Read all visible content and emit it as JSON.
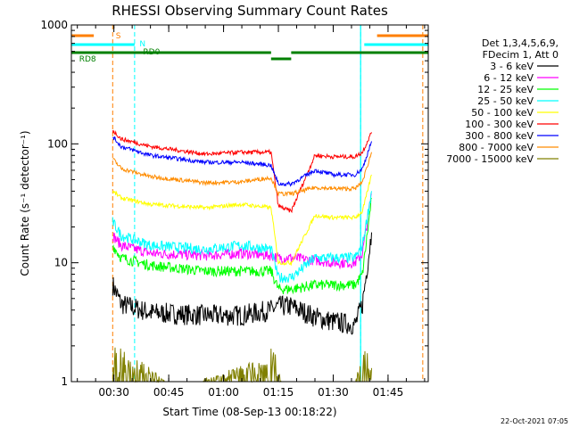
{
  "chart_data": {
    "type": "line",
    "title": "RHESSI Observing Summary Count Rates",
    "xlabel": "Start Time (08-Sep-13 00:18:22)",
    "ylabel": "Count Rate (s⁻¹ detector⁻¹)",
    "yscale": "log",
    "ylim": [
      1,
      1000
    ],
    "xlim": [
      "00:18:22",
      "01:56:00"
    ],
    "x_ticks": [
      "00:30",
      "00:45",
      "01:00",
      "01:15",
      "01:30",
      "01:45"
    ],
    "y_ticks": [
      "1",
      "10",
      "100",
      "1000"
    ],
    "grid": false,
    "legend_position": "right",
    "legend_header": [
      "Det 1,3,4,5,6,9,",
      "FDecim 1, Att 0"
    ],
    "timestamp": "22-Oct-2021 07:05",
    "markers": [
      {
        "label": "S",
        "color": "#ff7f00",
        "style": "dashed",
        "times": [
          "00:29:40",
          "01:54:30"
        ]
      },
      {
        "label": "N",
        "color": "#00ffff",
        "style": "dashed",
        "times": [
          "00:35:40",
          "01:37:30"
        ]
      }
    ],
    "data_gaps": [
      [
        "00:18:22",
        "00:29:40"
      ],
      [
        "01:40:30",
        "01:56:00"
      ]
    ],
    "attenuator_step": [
      "01:13:00",
      "01:18:30"
    ],
    "series": [
      {
        "name": "3 - 6 keV",
        "color": "#000000",
        "points": [
          [
            "00:29:40",
            6.5
          ],
          [
            "00:32:00",
            4.5
          ],
          [
            "00:40:00",
            3.8
          ],
          [
            "00:55:00",
            3.6
          ],
          [
            "01:05:00",
            3.6
          ],
          [
            "01:13:00",
            4
          ],
          [
            "01:15:00",
            4.3
          ],
          [
            "01:18:30",
            4.3
          ],
          [
            "01:25:00",
            3.5
          ],
          [
            "01:30:00",
            3.2
          ],
          [
            "01:36:00",
            3
          ],
          [
            "01:38:00",
            4.5
          ],
          [
            "01:40:30",
            18
          ]
        ]
      },
      {
        "name": "6 - 12 keV",
        "color": "#ff00ff",
        "points": [
          [
            "00:29:40",
            17
          ],
          [
            "00:32:00",
            14
          ],
          [
            "00:40:00",
            12
          ],
          [
            "00:55:00",
            11.5
          ],
          [
            "01:05:00",
            12
          ],
          [
            "01:13:00",
            11.5
          ],
          [
            "01:15:00",
            11
          ],
          [
            "01:18:30",
            11
          ],
          [
            "01:25:00",
            10.5
          ],
          [
            "01:30:00",
            10
          ],
          [
            "01:36:00",
            10
          ],
          [
            "01:38:00",
            12
          ],
          [
            "01:40:30",
            38
          ]
        ]
      },
      {
        "name": "12 - 25 keV",
        "color": "#00ff00",
        "points": [
          [
            "00:29:40",
            14
          ],
          [
            "00:32:00",
            11
          ],
          [
            "00:40:00",
            9.5
          ],
          [
            "00:55:00",
            8.5
          ],
          [
            "01:05:00",
            8.5
          ],
          [
            "01:13:00",
            8.5
          ],
          [
            "01:15:00",
            6
          ],
          [
            "01:18:30",
            6
          ],
          [
            "01:25:00",
            6.5
          ],
          [
            "01:30:00",
            6.5
          ],
          [
            "01:36:00",
            6.5
          ],
          [
            "01:38:00",
            8
          ],
          [
            "01:40:30",
            35
          ]
        ]
      },
      {
        "name": "25 - 50 keV",
        "color": "#00ffff",
        "points": [
          [
            "00:29:40",
            22
          ],
          [
            "00:32:00",
            17
          ],
          [
            "00:40:00",
            14
          ],
          [
            "00:55:00",
            13
          ],
          [
            "01:05:00",
            14
          ],
          [
            "01:13:00",
            13
          ],
          [
            "01:15:00",
            7.5
          ],
          [
            "01:18:30",
            7.5
          ],
          [
            "01:25:00",
            11
          ],
          [
            "01:30:00",
            11
          ],
          [
            "01:36:00",
            11
          ],
          [
            "01:38:00",
            14
          ],
          [
            "01:40:30",
            40
          ]
        ]
      },
      {
        "name": "50 - 100 keV",
        "color": "#ffff00",
        "points": [
          [
            "00:29:40",
            40
          ],
          [
            "00:32:00",
            35
          ],
          [
            "00:40:00",
            31
          ],
          [
            "00:55:00",
            29
          ],
          [
            "01:05:00",
            31
          ],
          [
            "01:13:00",
            29
          ],
          [
            "01:15:00",
            10
          ],
          [
            "01:18:30",
            10
          ],
          [
            "01:25:00",
            25
          ],
          [
            "01:30:00",
            24
          ],
          [
            "01:36:00",
            24
          ],
          [
            "01:38:00",
            27
          ],
          [
            "01:40:30",
            55
          ]
        ]
      },
      {
        "name": "100 - 300 keV",
        "color": "#ff0000",
        "points": [
          [
            "00:29:40",
            130
          ],
          [
            "00:32:00",
            110
          ],
          [
            "00:40:00",
            95
          ],
          [
            "00:55:00",
            82
          ],
          [
            "01:05:00",
            85
          ],
          [
            "01:13:00",
            85
          ],
          [
            "01:15:00",
            30
          ],
          [
            "01:18:30",
            27
          ],
          [
            "01:25:00",
            80
          ],
          [
            "01:30:00",
            78
          ],
          [
            "01:36:00",
            78
          ],
          [
            "01:38:00",
            85
          ],
          [
            "01:40:30",
            125
          ]
        ]
      },
      {
        "name": "300 - 800 keV",
        "color": "#0000ff",
        "points": [
          [
            "00:29:40",
            115
          ],
          [
            "00:32:00",
            95
          ],
          [
            "00:40:00",
            80
          ],
          [
            "00:55:00",
            70
          ],
          [
            "01:05:00",
            70
          ],
          [
            "01:13:00",
            66
          ],
          [
            "01:15:00",
            46
          ],
          [
            "01:18:30",
            46
          ],
          [
            "01:25:00",
            60
          ],
          [
            "01:30:00",
            55
          ],
          [
            "01:36:00",
            55
          ],
          [
            "01:38:00",
            62
          ],
          [
            "01:40:30",
            105
          ]
        ]
      },
      {
        "name": "800 - 7000 keV",
        "color": "#ff8c00",
        "points": [
          [
            "00:29:40",
            75
          ],
          [
            "00:32:00",
            62
          ],
          [
            "00:40:00",
            53
          ],
          [
            "00:55:00",
            47
          ],
          [
            "01:05:00",
            48
          ],
          [
            "01:13:00",
            52
          ],
          [
            "01:15:00",
            38
          ],
          [
            "01:18:30",
            38
          ],
          [
            "01:25:00",
            43
          ],
          [
            "01:30:00",
            42
          ],
          [
            "01:36:00",
            42
          ],
          [
            "01:38:00",
            48
          ],
          [
            "01:40:30",
            85
          ]
        ]
      },
      {
        "name": "7000 - 15000 keV",
        "color": "#808000",
        "points": [
          [
            "00:29:40",
            1.9
          ],
          [
            "00:34:30",
            1.6
          ],
          [
            "00:45:00",
            1.0
          ],
          [
            "00:52:00",
            1.0
          ],
          [
            "01:11:30",
            1.5
          ],
          [
            "01:13:30",
            1.9
          ],
          [
            "01:16:00",
            1.0
          ],
          [
            "01:36:00",
            1.0
          ],
          [
            "01:38:30",
            1.9
          ],
          [
            "01:40:30",
            1.3
          ]
        ]
      }
    ],
    "flag_bars": [
      {
        "label": "S",
        "color": "#ff7f00",
        "segments": [
          [
            "00:18:22",
            "00:24:30"
          ],
          [
            "01:42:00",
            "01:56:00"
          ]
        ],
        "level": "top"
      },
      {
        "label": "N",
        "color": "#00ffff",
        "segments": [
          [
            "00:18:22",
            "00:35:40"
          ],
          [
            "01:38:30",
            "01:56:00"
          ]
        ],
        "level": "second"
      },
      {
        "label": "RD0",
        "color": "#008000",
        "segments": [
          [
            "00:18:22",
            "01:13:00"
          ],
          [
            "01:18:30",
            "01:56:00"
          ]
        ],
        "level": "third"
      },
      {
        "label": "",
        "color": "#008000",
        "segments": [
          [
            "01:13:00",
            "01:18:30"
          ]
        ],
        "level": "fourth"
      },
      {
        "label": "RD8",
        "color": "#008000",
        "segments": [],
        "level": "label-only"
      }
    ]
  }
}
